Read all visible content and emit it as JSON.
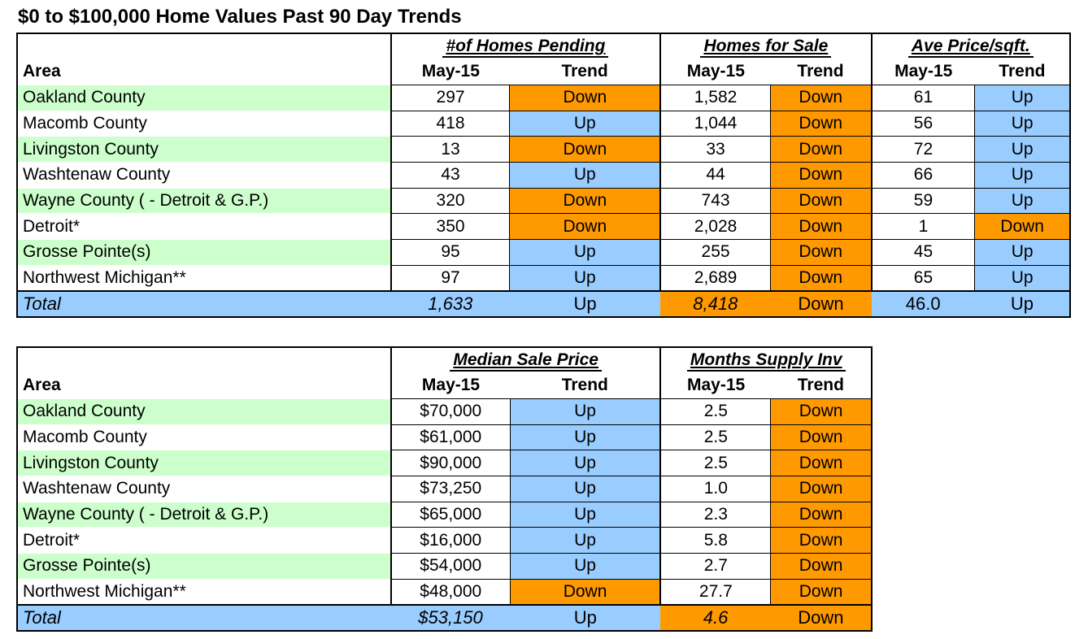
{
  "title": "$0 to $100,000 Home Values Past 90 Day Trends",
  "colors": {
    "area_highlight": "#ccffcc",
    "up_trend": "#99ccff",
    "down_trend": "#ff9900",
    "total_row": "#99ccff"
  },
  "table1": {
    "area_header": "Area",
    "groups": {
      "pending": "#of Homes Pending",
      "for_sale": "Homes for Sale",
      "price_sqft": "Ave Price/sqft."
    },
    "sub_headers": {
      "month": "May-15",
      "trend": "Trend"
    },
    "rows": [
      {
        "area": "Oakland County",
        "pending": "297",
        "pending_trend": "Down",
        "for_sale": "1,582",
        "for_sale_trend": "Down",
        "price_sqft": "61",
        "price_sqft_trend": "Up"
      },
      {
        "area": "Macomb County",
        "pending": "418",
        "pending_trend": "Up",
        "for_sale": "1,044",
        "for_sale_trend": "Down",
        "price_sqft": "56",
        "price_sqft_trend": "Up"
      },
      {
        "area": "Livingston County",
        "pending": "13",
        "pending_trend": "Down",
        "for_sale": "33",
        "for_sale_trend": "Down",
        "price_sqft": "72",
        "price_sqft_trend": "Up"
      },
      {
        "area": "Washtenaw County",
        "pending": "43",
        "pending_trend": "Up",
        "for_sale": "44",
        "for_sale_trend": "Down",
        "price_sqft": "66",
        "price_sqft_trend": "Up"
      },
      {
        "area": "Wayne County ( - Detroit & G.P.)",
        "pending": "320",
        "pending_trend": "Down",
        "for_sale": "743",
        "for_sale_trend": "Down",
        "price_sqft": "59",
        "price_sqft_trend": "Up"
      },
      {
        "area": "Detroit*",
        "pending": "350",
        "pending_trend": "Down",
        "for_sale": "2,028",
        "for_sale_trend": "Down",
        "price_sqft": "1",
        "price_sqft_trend": "Down"
      },
      {
        "area": "Grosse Pointe(s)",
        "pending": "95",
        "pending_trend": "Up",
        "for_sale": "255",
        "for_sale_trend": "Down",
        "price_sqft": "45",
        "price_sqft_trend": "Up"
      },
      {
        "area": "Northwest Michigan**",
        "pending": "97",
        "pending_trend": "Up",
        "for_sale": "2,689",
        "for_sale_trend": "Down",
        "price_sqft": "65",
        "price_sqft_trend": "Up"
      }
    ],
    "total": {
      "label": "Total",
      "pending": "1,633",
      "pending_trend": "Up",
      "for_sale": "8,418",
      "for_sale_trend": "Down",
      "price_sqft": "46.0",
      "price_sqft_trend": "Up"
    }
  },
  "table2": {
    "area_header": "Area",
    "groups": {
      "median": "Median Sale Price",
      "supply": "Months Supply Inv"
    },
    "sub_headers": {
      "month": "May-15",
      "trend": "Trend"
    },
    "rows": [
      {
        "area": "Oakland County",
        "median": "$70,000",
        "median_trend": "Up",
        "supply": "2.5",
        "supply_trend": "Down"
      },
      {
        "area": "Macomb County",
        "median": "$61,000",
        "median_trend": "Up",
        "supply": "2.5",
        "supply_trend": "Down"
      },
      {
        "area": "Livingston County",
        "median": "$90,000",
        "median_trend": "Up",
        "supply": "2.5",
        "supply_trend": "Down"
      },
      {
        "area": "Washtenaw County",
        "median": "$73,250",
        "median_trend": "Up",
        "supply": "1.0",
        "supply_trend": "Down"
      },
      {
        "area": "Wayne County ( - Detroit & G.P.)",
        "median": "$65,000",
        "median_trend": "Up",
        "supply": "2.3",
        "supply_trend": "Down"
      },
      {
        "area": "Detroit*",
        "median": "$16,000",
        "median_trend": "Up",
        "supply": "5.8",
        "supply_trend": "Down"
      },
      {
        "area": "Grosse Pointe(s)",
        "median": "$54,000",
        "median_trend": "Up",
        "supply": "2.7",
        "supply_trend": "Down"
      },
      {
        "area": "Northwest Michigan**",
        "median": "$48,000",
        "median_trend": "Down",
        "supply": "27.7",
        "supply_trend": "Down"
      }
    ],
    "total": {
      "label": "Total",
      "median": "$53,150",
      "median_trend": "Up",
      "supply": "4.6",
      "supply_trend": "Down"
    }
  }
}
